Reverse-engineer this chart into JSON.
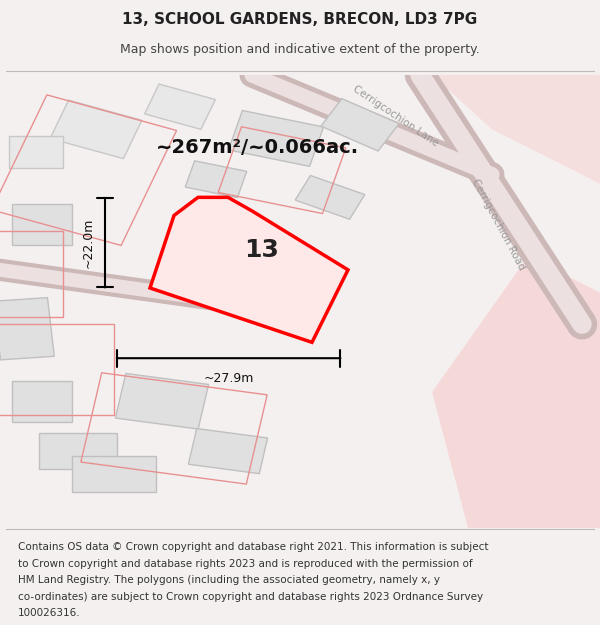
{
  "title": "13, SCHOOL GARDENS, BRECON, LD3 7PG",
  "subtitle": "Map shows position and indicative extent of the property.",
  "area_text": "~267m²/~0.066ac.",
  "plot_number": "13",
  "dim_width": "~27.9m",
  "dim_height": "~22.0m",
  "footer_lines": [
    "Contains OS data © Crown copyright and database right 2021. This information is subject",
    "to Crown copyright and database rights 2023 and is reproduced with the permission of",
    "HM Land Registry. The polygons (including the associated geometry, namely x, y",
    "co-ordinates) are subject to Crown copyright and database rights 2023 Ordnance Survey",
    "100026316."
  ],
  "bg_color": "#f5f0f0",
  "map_bg": "#ffffff",
  "road_color": "#ede0e0",
  "road_stroke": "#cdb8b8",
  "building_color": "#e0e0e0",
  "building_stroke": "#c0c0c0",
  "pink_fill": "#f5d0d0",
  "pink_outline": "#e89090",
  "prop_fill": "#ffe8e8",
  "prop_stroke": "#ff0000",
  "title_fontsize": 11,
  "subtitle_fontsize": 9,
  "footer_fontsize": 7.5,
  "area_fontsize": 14,
  "dim_fontsize": 9,
  "plot_num_fontsize": 18,
  "road_label_fontsize": 7.5,
  "road_label_color": "#999999"
}
